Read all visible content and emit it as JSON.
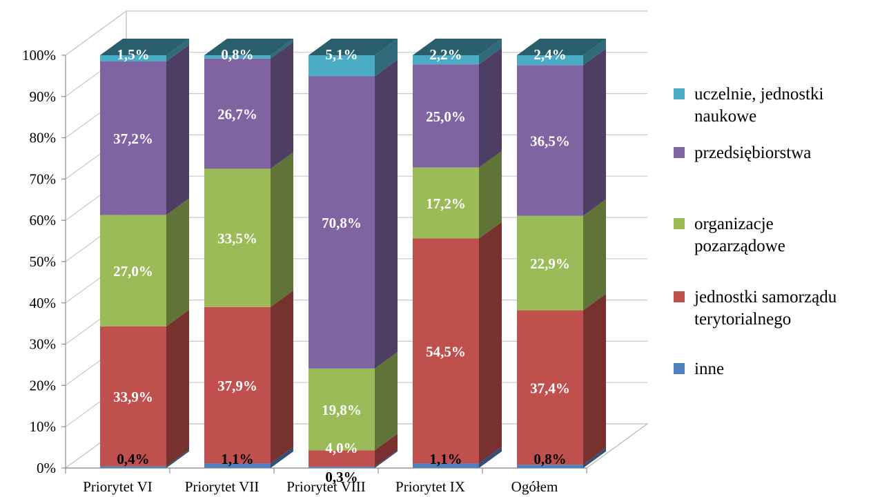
{
  "chart_data": {
    "type": "bar",
    "stacked": true,
    "three_d": true,
    "title": "",
    "xlabel": "",
    "ylabel": "",
    "ylim": [
      0,
      100
    ],
    "y_ticks": [
      "0%",
      "10%",
      "20%",
      "30%",
      "40%",
      "50%",
      "60%",
      "70%",
      "80%",
      "90%",
      "100%"
    ],
    "grid": true,
    "legend_position": "right",
    "categories": [
      "Priorytet  VI",
      "Priorytet VII",
      "Priorytet VIII",
      "Priorytet  IX",
      "Ogółem"
    ],
    "series": [
      {
        "name": "inne",
        "color": "#4f81bd",
        "values": [
          0.4,
          1.1,
          0.3,
          1.1,
          0.8
        ],
        "labels": [
          "0,4%",
          "1,1%",
          "0,3%",
          "1,1%",
          "0,8%"
        ]
      },
      {
        "name": "jednostki samorządu terytorialnego",
        "color": "#c0504d",
        "values": [
          33.9,
          37.9,
          4.0,
          54.5,
          37.4
        ],
        "labels": [
          "33,9%",
          "37,9%",
          "4,0%",
          "54,5%",
          "37,4%"
        ]
      },
      {
        "name": "organizacje pozarządowe",
        "color": "#9bbb59",
        "values": [
          27.0,
          33.5,
          19.8,
          17.2,
          22.9
        ],
        "labels": [
          "27,0%",
          "33,5%",
          "19,8%",
          "17,2%",
          "22,9%"
        ]
      },
      {
        "name": "przedsiębiorstwa",
        "color": "#8064a2",
        "values": [
          37.2,
          26.7,
          70.8,
          25.0,
          36.5
        ],
        "labels": [
          "37,2%",
          "26,7%",
          "70,8%",
          "25,0%",
          "36,5%"
        ]
      },
      {
        "name": "uczelnie, jednostki naukowe",
        "color": "#4bacc6",
        "values": [
          1.5,
          0.8,
          5.1,
          2.2,
          2.4
        ],
        "labels": [
          "1,5%",
          "0,8%",
          "5,1%",
          "2,2%",
          "2,4%"
        ]
      }
    ],
    "legend": [
      {
        "lines": [
          "uczelnie, jednostki",
          "naukowe"
        ],
        "color": "#4bacc6",
        "icon": "square-marker"
      },
      {
        "lines": [
          "przedsiębiorstwa"
        ],
        "color": "#8064a2",
        "icon": "square-marker"
      },
      {
        "lines": [
          "organizacje",
          "pozarządowe"
        ],
        "color": "#9bbb59",
        "icon": "square-marker"
      },
      {
        "lines": [
          "jednostki samorządu",
          "terytorialnego"
        ],
        "color": "#c0504d",
        "icon": "square-marker"
      },
      {
        "lines": [
          "inne"
        ],
        "color": "#4f81bd",
        "icon": "square-marker"
      }
    ]
  }
}
